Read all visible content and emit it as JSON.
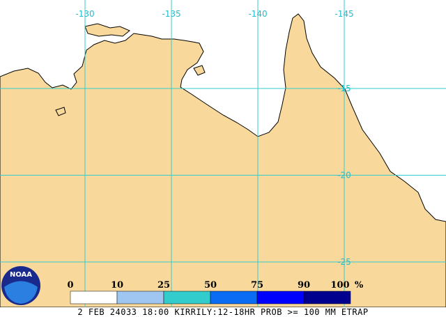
{
  "map": {
    "lon_labels": [
      -130,
      -135,
      -140,
      -145
    ],
    "lat_labels": [
      -15,
      -20,
      -25
    ]
  },
  "legend": {
    "ticks": [
      0,
      10,
      25,
      50,
      75,
      90,
      100
    ],
    "unit": "%",
    "colors": [
      "#ffffff",
      "#9fc6f0",
      "#33cccc",
      "#0a6cf2",
      "#0000ff",
      "#00008f"
    ]
  },
  "logo": "NOAA",
  "caption": "2 FEB 24033 18:00 KIRRILY:12-18HR PROB >= 100 MM ETRAP"
}
